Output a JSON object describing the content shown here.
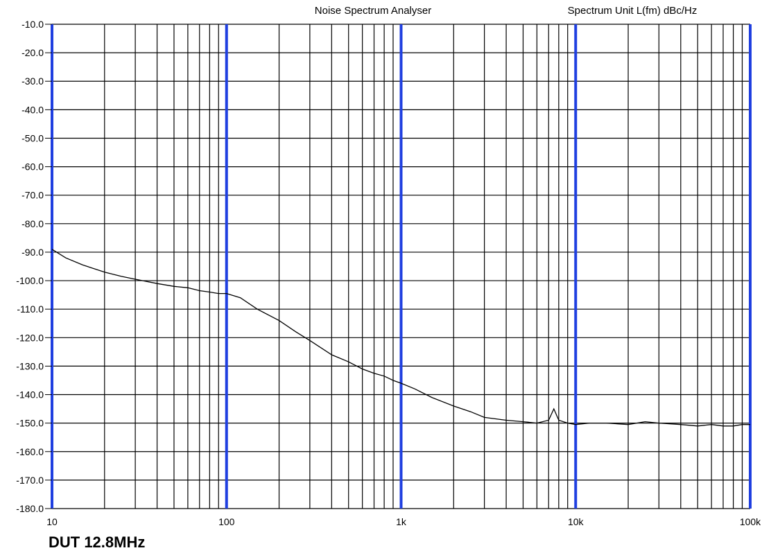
{
  "header": {
    "title": "Noise Spectrum Analyser",
    "unit_label": "Spectrum Unit L(fm) dBc/Hz"
  },
  "caption": "DUT 12.8MHz",
  "colors": {
    "decade_line": "#1f3fe0",
    "minor_line": "#000000",
    "trace": "#000000",
    "background": "#ffffff"
  },
  "chart_data": {
    "type": "line",
    "title": "Noise Spectrum Analyser",
    "ylabel": "Spectrum Unit L(fm) dBc/Hz",
    "xlabel": "",
    "x_scale": "log",
    "xlim": [
      10,
      100000
    ],
    "ylim": [
      -180,
      -10
    ],
    "grid": true,
    "x_tick_labels": [
      "10",
      "100",
      "1k",
      "10k",
      "100k"
    ],
    "x_tick_values": [
      10,
      100,
      1000,
      10000,
      100000
    ],
    "y_tick_labels": [
      "-10.0",
      "-20.0",
      "-30.0",
      "-40.0",
      "-50.0",
      "-60.0",
      "-70.0",
      "-80.0",
      "-90.0",
      "-100.0",
      "-110.0",
      "-120.0",
      "-130.0",
      "-140.0",
      "-150.0",
      "-160.0",
      "-170.0",
      "-180.0"
    ],
    "y_tick_values": [
      -10,
      -20,
      -30,
      -40,
      -50,
      -60,
      -70,
      -80,
      -90,
      -100,
      -110,
      -120,
      -130,
      -140,
      -150,
      -160,
      -170,
      -180
    ],
    "series": [
      {
        "x": [
          10,
          12,
          15,
          20,
          25,
          30,
          40,
          50,
          60,
          70,
          80,
          90,
          100,
          120,
          150,
          200,
          250,
          300,
          400,
          500,
          600,
          700,
          800,
          900,
          1000,
          1200,
          1500,
          2000,
          2500,
          3000,
          4000,
          5000,
          6000,
          7000,
          7500,
          8000,
          9000,
          10000,
          12000,
          15000,
          20000,
          25000,
          30000,
          40000,
          50000,
          60000,
          70000,
          80000,
          90000,
          100000
        ],
        "y": [
          -89,
          -92,
          -94.5,
          -97,
          -98.5,
          -99.5,
          -101,
          -102,
          -102.5,
          -103.5,
          -104,
          -104.5,
          -104.5,
          -106,
          -110,
          -114,
          -118,
          -121,
          -126,
          -128.5,
          -131,
          -132.5,
          -133.5,
          -135,
          -136,
          -138,
          -141,
          -144,
          -146,
          -148,
          -149,
          -149.5,
          -150,
          -149,
          -145,
          -149,
          -150,
          -150.5,
          -150,
          -150,
          -150.5,
          -149.5,
          -150,
          -150.5,
          -151,
          -150.5,
          -151,
          -151,
          -150.5,
          -150.5
        ]
      }
    ]
  }
}
